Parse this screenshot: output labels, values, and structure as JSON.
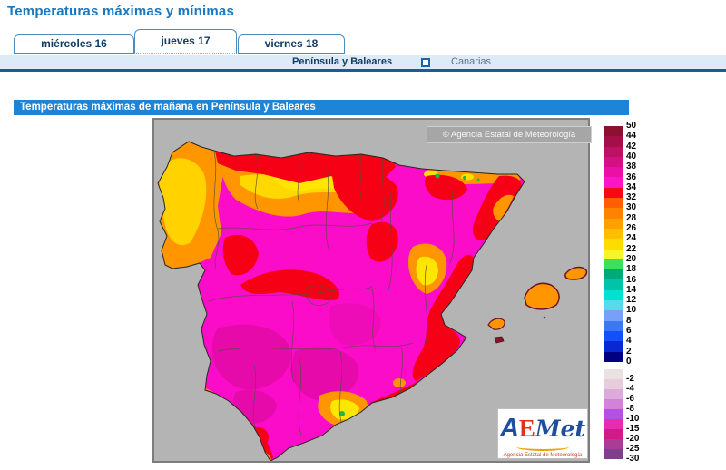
{
  "page_title": "Temperaturas máximas y mínimas",
  "tabs": [
    {
      "label": "miércoles 16",
      "active": false
    },
    {
      "label": "jueves 17",
      "active": true
    },
    {
      "label": "viernes 18",
      "active": false
    }
  ],
  "region_nav": {
    "peninsula": "Península y Baleares",
    "canarias": "Canarias"
  },
  "map_header": "Temperaturas máximas de mañana en Península y Baleares",
  "map_overlay": {
    "copyright": "© Agencia Estatal de Meteorología",
    "logo": {
      "part_a": "A",
      "part_e": "E",
      "part_met": "Met",
      "subtitle": "Agencia Estatal de Meteorología"
    }
  },
  "legend": {
    "positive": {
      "labels": [
        "50",
        "44",
        "42",
        "40",
        "38",
        "36",
        "34",
        "32",
        "30",
        "28",
        "26",
        "24",
        "22",
        "20",
        "18",
        "16",
        "14",
        "12",
        "10",
        "8",
        "6",
        "4",
        "2",
        "0"
      ],
      "colors": [
        "#8e1030",
        "#a31048",
        "#bc1266",
        "#d21284",
        "#ea10a6",
        "#fb14c8",
        "#f50a14",
        "#ff5f00",
        "#ff8200",
        "#ffa000",
        "#ffbe00",
        "#ffdc00",
        "#f5f52a",
        "#3ce05a",
        "#00aa78",
        "#00c3aa",
        "#00e1d2",
        "#55dcec",
        "#78a0f8",
        "#3c78f0",
        "#1450fa",
        "#0a28d2",
        "#000082"
      ]
    },
    "negative": {
      "labels": [
        "-2",
        "-4",
        "-6",
        "-8",
        "-10",
        "-15",
        "-20",
        "-25",
        "-30"
      ],
      "colors": [
        "#ece1e1",
        "#e6cdd9",
        "#dcaadd",
        "#d283d7",
        "#b450e6",
        "#e62cb0",
        "#d21988",
        "#aa3c96",
        "#7f3f8c"
      ]
    }
  },
  "colors": {
    "title_blue": "#1878c0",
    "header_bar_blue": "#1d84d7",
    "subnav_bg": "#dcebf7",
    "sea_gray": "#b4b4b4",
    "map_base_magenta": "#fa0cc8"
  }
}
